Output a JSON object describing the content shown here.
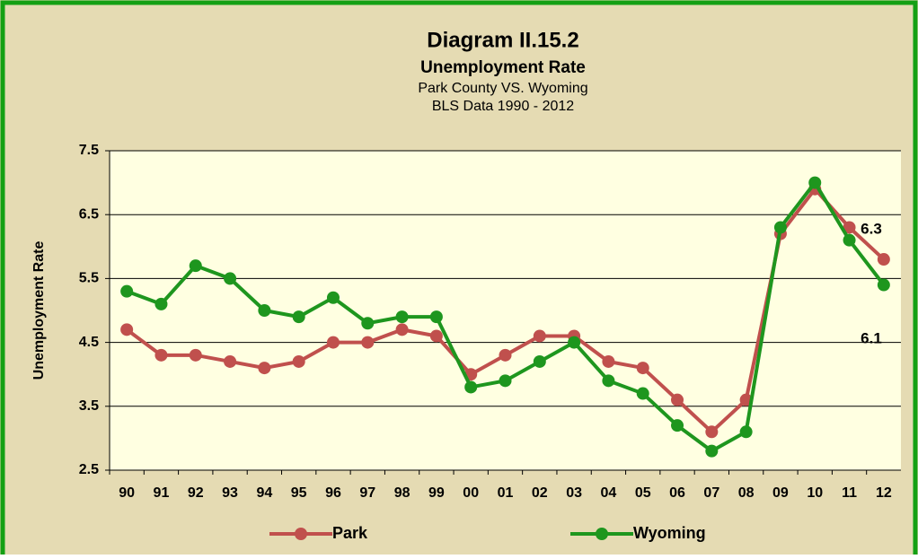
{
  "chart_data": {
    "type": "line",
    "title": "Diagram II.15.2",
    "subtitle": "Unemployment Rate",
    "subtitle2": "Park County VS. Wyoming",
    "subtitle3": "BLS Data 1990 - 2012",
    "ylabel": "Unemployment Rate",
    "categories": [
      "90",
      "91",
      "92",
      "93",
      "94",
      "95",
      "96",
      "97",
      "98",
      "99",
      "00",
      "01",
      "02",
      "03",
      "04",
      "05",
      "06",
      "07",
      "08",
      "09",
      "10",
      "11",
      "12"
    ],
    "series": [
      {
        "name": "Park",
        "color": "#c0504d",
        "values": [
          4.7,
          4.3,
          4.3,
          4.2,
          4.1,
          4.2,
          4.5,
          4.5,
          4.7,
          4.6,
          4.0,
          4.3,
          4.6,
          4.6,
          4.2,
          4.1,
          3.6,
          3.1,
          3.6,
          6.2,
          6.9,
          6.3,
          5.8
        ]
      },
      {
        "name": "Wyoming",
        "color": "#1e961e",
        "values": [
          5.3,
          5.1,
          5.7,
          5.5,
          5.0,
          4.9,
          5.2,
          4.8,
          4.9,
          4.9,
          3.8,
          3.9,
          4.2,
          4.5,
          3.9,
          3.7,
          3.2,
          2.8,
          3.1,
          6.3,
          7.0,
          6.1,
          5.4
        ]
      }
    ],
    "annotations": [
      "6.3",
      "6.1"
    ],
    "ylim": [
      2.5,
      7.5
    ],
    "yticks": [
      2.5,
      3.5,
      4.5,
      5.5,
      6.5,
      7.5
    ],
    "grid": true,
    "legend": "bottom"
  }
}
